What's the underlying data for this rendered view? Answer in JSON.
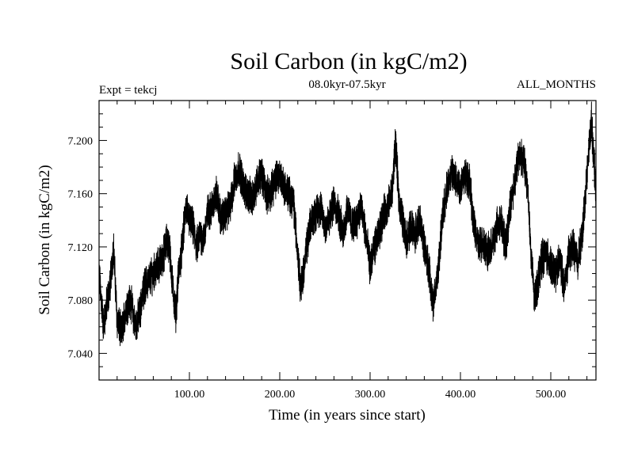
{
  "chart_data": {
    "type": "line",
    "title": "Soil Carbon (in kgC/m2)",
    "subtitle": "08.0kyr-07.5kyr",
    "left_label": "Expt = tekcj",
    "right_label": "ALL_MONTHS",
    "xlabel": "Time (in years since start)",
    "ylabel": "Soil Carbon (in kgC/m2)",
    "xlim": [
      0,
      550
    ],
    "ylim": [
      7.02,
      7.23
    ],
    "x_ticks": [
      100,
      200,
      300,
      400,
      500
    ],
    "x_tick_labels": [
      "100.00",
      "200.00",
      "300.00",
      "400.00",
      "500.00"
    ],
    "y_ticks": [
      7.04,
      7.08,
      7.12,
      7.16,
      7.2
    ],
    "y_tick_labels": [
      "7.040",
      "7.080",
      "7.120",
      "7.160",
      "7.200"
    ],
    "grid": false,
    "series": [
      {
        "name": "Soil Carbon",
        "color": "#000000",
        "x": [
          0,
          5,
          8,
          12,
          16,
          20,
          25,
          30,
          35,
          40,
          45,
          50,
          55,
          60,
          65,
          70,
          75,
          78,
          82,
          85,
          88,
          92,
          96,
          100,
          104,
          108,
          112,
          116,
          120,
          125,
          130,
          135,
          140,
          145,
          150,
          155,
          160,
          165,
          170,
          175,
          180,
          185,
          190,
          195,
          200,
          205,
          210,
          215,
          220,
          223,
          226,
          230,
          235,
          240,
          245,
          250,
          255,
          260,
          265,
          270,
          275,
          280,
          285,
          290,
          295,
          300,
          305,
          310,
          315,
          320,
          325,
          328,
          332,
          336,
          340,
          345,
          350,
          355,
          360,
          365,
          370,
          375,
          380,
          385,
          390,
          395,
          400,
          405,
          410,
          415,
          420,
          425,
          430,
          435,
          440,
          445,
          450,
          455,
          460,
          465,
          470,
          475,
          478,
          482,
          486,
          490,
          495,
          500,
          505,
          510,
          515,
          520,
          525,
          530,
          535,
          540,
          545,
          550
        ],
        "values": [
          7.1,
          7.06,
          7.075,
          7.09,
          7.12,
          7.065,
          7.055,
          7.075,
          7.08,
          7.06,
          7.07,
          7.09,
          7.095,
          7.1,
          7.105,
          7.11,
          7.125,
          7.12,
          7.085,
          7.07,
          7.1,
          7.12,
          7.15,
          7.14,
          7.135,
          7.12,
          7.13,
          7.125,
          7.145,
          7.15,
          7.16,
          7.14,
          7.145,
          7.15,
          7.17,
          7.18,
          7.165,
          7.16,
          7.155,
          7.17,
          7.175,
          7.16,
          7.16,
          7.17,
          7.175,
          7.165,
          7.16,
          7.155,
          7.115,
          7.09,
          7.1,
          7.12,
          7.14,
          7.145,
          7.15,
          7.135,
          7.14,
          7.155,
          7.145,
          7.13,
          7.15,
          7.135,
          7.14,
          7.15,
          7.13,
          7.105,
          7.12,
          7.13,
          7.145,
          7.15,
          7.165,
          7.2,
          7.155,
          7.14,
          7.125,
          7.135,
          7.13,
          7.14,
          7.12,
          7.105,
          7.075,
          7.1,
          7.14,
          7.165,
          7.175,
          7.17,
          7.165,
          7.175,
          7.17,
          7.135,
          7.12,
          7.125,
          7.115,
          7.12,
          7.135,
          7.14,
          7.12,
          7.15,
          7.17,
          7.19,
          7.185,
          7.16,
          7.115,
          7.08,
          7.095,
          7.11,
          7.115,
          7.105,
          7.1,
          7.11,
          7.09,
          7.115,
          7.12,
          7.11,
          7.13,
          7.175,
          7.215,
          7.16
        ]
      }
    ]
  }
}
